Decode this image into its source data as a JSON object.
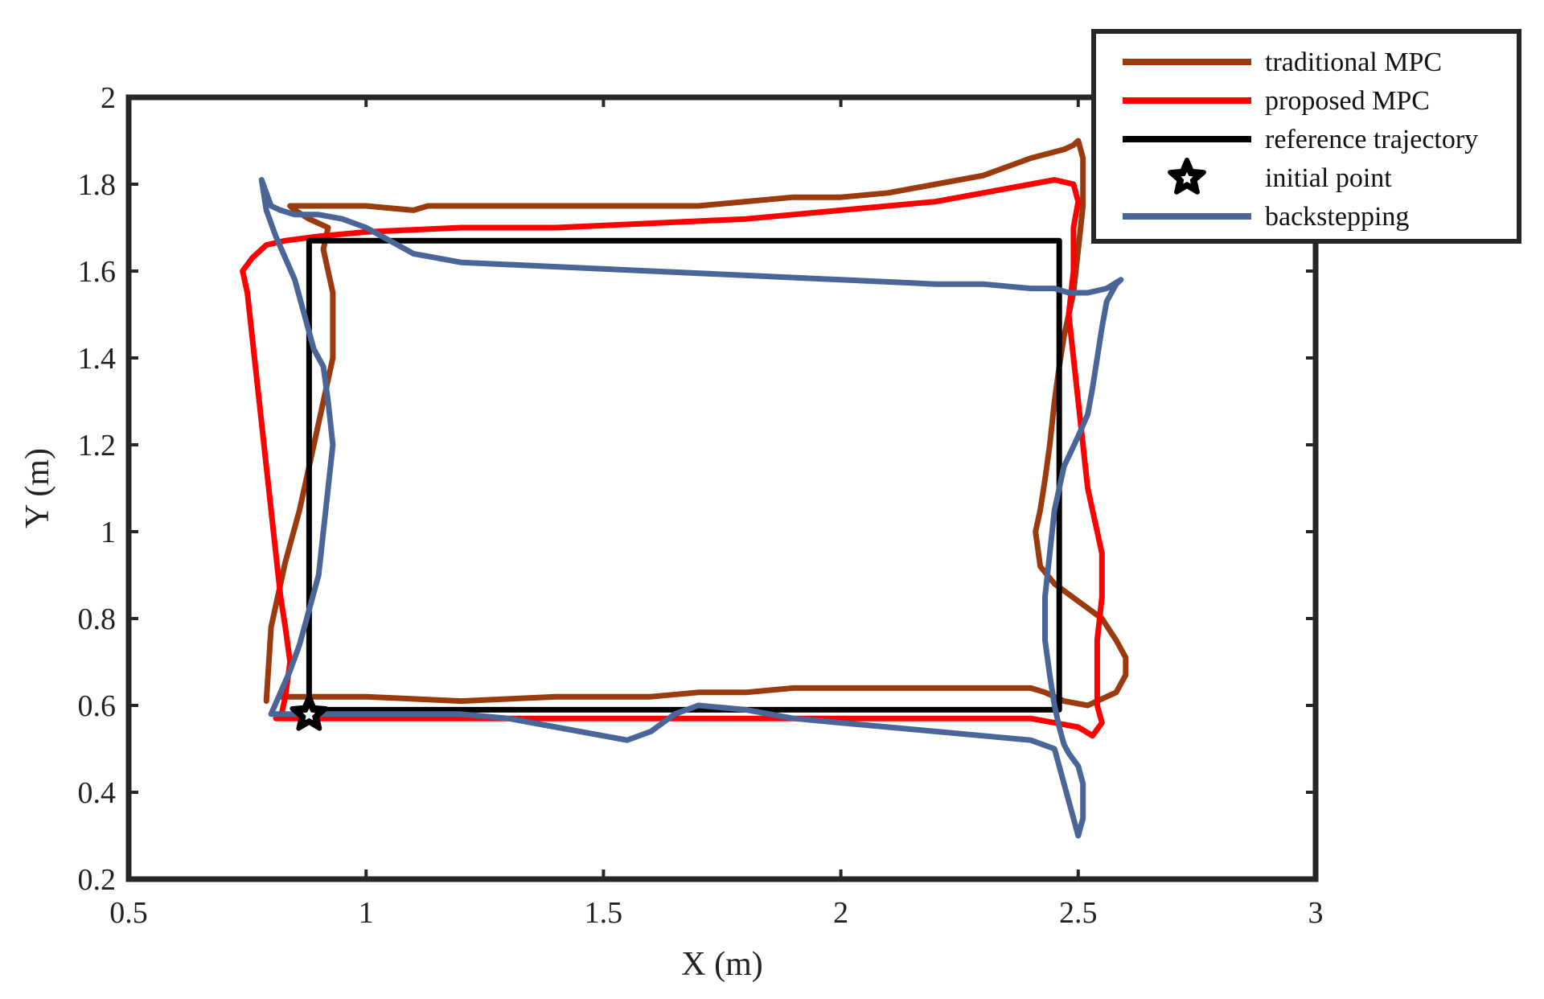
{
  "chart_data": {
    "type": "line",
    "title": "",
    "xlabel": "X (m)",
    "ylabel": "Y (m)",
    "xlim": [
      0.5,
      3
    ],
    "ylim": [
      0.2,
      2
    ],
    "xticks": [
      0.5,
      1,
      1.5,
      2,
      2.5,
      3
    ],
    "xtick_labels": [
      "0.5",
      "1",
      "1.5",
      "2",
      "2.5",
      "3"
    ],
    "yticks": [
      0.2,
      0.4,
      0.6,
      0.8,
      1.0,
      1.2,
      1.4,
      1.6,
      1.8,
      2.0
    ],
    "ytick_labels": [
      "0.2",
      "0.4",
      "0.6",
      "0.8",
      "1",
      "1.2",
      "1.4",
      "1.6",
      "1.8",
      "2"
    ],
    "grid": false,
    "legend_position": "top-right",
    "series": [
      {
        "name": "traditional MPC",
        "color": "#9b3a0c",
        "marker": "line",
        "x": [
          0.79,
          0.8,
          0.83,
          0.86,
          0.88,
          0.9,
          0.92,
          0.93,
          0.93,
          0.91,
          0.92,
          0.9,
          0.88,
          0.85,
          0.84,
          1.0,
          1.1,
          1.13,
          1.15,
          1.4,
          1.7,
          1.8,
          1.9,
          2.0,
          2.1,
          2.2,
          2.3,
          2.4,
          2.47,
          2.49,
          2.5,
          2.51,
          2.51,
          2.5,
          2.49,
          2.47,
          2.46,
          2.45,
          2.44,
          2.43,
          2.42,
          2.41,
          2.42,
          2.45,
          2.5,
          2.55,
          2.58,
          2.6,
          2.6,
          2.58,
          2.52,
          2.47,
          2.43,
          2.4,
          2.3,
          2.2,
          2.1,
          2.0,
          1.9,
          1.8,
          1.7,
          1.6,
          1.4,
          1.2,
          1.0,
          0.9,
          0.82
        ],
        "y": [
          0.61,
          0.78,
          0.93,
          1.05,
          1.15,
          1.25,
          1.35,
          1.4,
          1.55,
          1.65,
          1.7,
          1.71,
          1.72,
          1.74,
          1.75,
          1.75,
          1.74,
          1.75,
          1.75,
          1.75,
          1.75,
          1.76,
          1.77,
          1.77,
          1.78,
          1.8,
          1.82,
          1.86,
          1.88,
          1.89,
          1.9,
          1.86,
          1.75,
          1.65,
          1.55,
          1.45,
          1.38,
          1.3,
          1.2,
          1.12,
          1.05,
          1.0,
          0.92,
          0.88,
          0.84,
          0.8,
          0.75,
          0.71,
          0.67,
          0.63,
          0.6,
          0.61,
          0.63,
          0.64,
          0.64,
          0.64,
          0.64,
          0.64,
          0.64,
          0.63,
          0.63,
          0.62,
          0.62,
          0.61,
          0.62,
          0.62,
          0.62
        ]
      },
      {
        "name": "proposed MPC",
        "color": "#ff0000",
        "marker": "line",
        "x": [
          0.82,
          0.83,
          0.84,
          0.83,
          0.82,
          0.81,
          0.8,
          0.79,
          0.78,
          0.77,
          0.76,
          0.75,
          0.74,
          0.76,
          0.79,
          0.83,
          0.9,
          1.0,
          1.2,
          1.4,
          1.6,
          1.8,
          2.0,
          2.2,
          2.3,
          2.4,
          2.45,
          2.49,
          2.5,
          2.49,
          2.49,
          2.48,
          2.49,
          2.5,
          2.51,
          2.52,
          2.53,
          2.54,
          2.55,
          2.55,
          2.54,
          2.54,
          2.54,
          2.55,
          2.53,
          2.5,
          2.45,
          2.4,
          2.3,
          2.2,
          2.0,
          1.8,
          1.6,
          1.4,
          1.2,
          1.0,
          0.9,
          0.81
        ],
        "y": [
          0.57,
          0.62,
          0.7,
          0.78,
          0.85,
          0.95,
          1.05,
          1.15,
          1.25,
          1.35,
          1.45,
          1.55,
          1.6,
          1.63,
          1.66,
          1.67,
          1.68,
          1.69,
          1.7,
          1.7,
          1.71,
          1.72,
          1.74,
          1.76,
          1.78,
          1.8,
          1.81,
          1.8,
          1.76,
          1.7,
          1.6,
          1.5,
          1.4,
          1.3,
          1.2,
          1.1,
          1.05,
          1.0,
          0.95,
          0.85,
          0.75,
          0.65,
          0.6,
          0.56,
          0.53,
          0.55,
          0.56,
          0.57,
          0.57,
          0.57,
          0.57,
          0.57,
          0.57,
          0.57,
          0.57,
          0.57,
          0.57,
          0.57
        ]
      },
      {
        "name": "reference trajectory",
        "color": "#000000",
        "marker": "line",
        "x": [
          0.88,
          2.46,
          2.46,
          0.88,
          0.88
        ],
        "y": [
          0.59,
          0.59,
          1.67,
          1.67,
          0.59
        ]
      },
      {
        "name": "initial point",
        "color": "#000000",
        "marker": "star",
        "x": [
          0.88
        ],
        "y": [
          0.58
        ]
      },
      {
        "name": "backstepping",
        "color": "#4a6699",
        "marker": "line",
        "x": [
          0.78,
          0.79,
          0.8,
          0.82,
          0.85,
          0.9,
          0.95,
          1.0,
          1.05,
          1.1,
          1.2,
          1.4,
          1.6,
          1.8,
          2.0,
          2.2,
          2.3,
          2.4,
          2.45,
          2.48,
          2.52,
          2.56,
          2.59,
          2.58,
          2.56,
          2.55,
          2.54,
          2.53,
          2.52,
          2.5,
          2.47,
          2.45,
          2.44,
          2.43,
          2.43,
          2.44,
          2.45,
          2.46,
          2.47,
          2.48,
          2.5,
          2.51,
          2.51,
          2.5,
          2.45,
          2.4,
          2.3,
          2.2,
          2.1,
          2.0,
          1.9,
          1.8,
          1.7,
          1.65,
          1.6,
          1.55,
          1.5,
          1.4,
          1.3,
          1.2,
          1.1,
          1.0,
          0.9,
          0.85,
          0.8,
          0.82,
          0.84,
          0.86,
          0.88,
          0.9,
          0.91,
          0.92,
          0.93,
          0.92,
          0.91,
          0.89,
          0.87,
          0.85,
          0.83,
          0.81,
          0.79,
          0.78
        ],
        "y": [
          1.81,
          1.78,
          1.75,
          1.74,
          1.73,
          1.73,
          1.72,
          1.7,
          1.67,
          1.64,
          1.62,
          1.61,
          1.6,
          1.59,
          1.58,
          1.57,
          1.57,
          1.56,
          1.56,
          1.55,
          1.55,
          1.56,
          1.58,
          1.57,
          1.53,
          1.47,
          1.4,
          1.33,
          1.27,
          1.22,
          1.15,
          1.05,
          0.95,
          0.85,
          0.75,
          0.67,
          0.6,
          0.55,
          0.51,
          0.49,
          0.46,
          0.42,
          0.34,
          0.3,
          0.5,
          0.52,
          0.53,
          0.54,
          0.55,
          0.56,
          0.57,
          0.59,
          0.6,
          0.58,
          0.54,
          0.52,
          0.53,
          0.55,
          0.57,
          0.58,
          0.58,
          0.58,
          0.58,
          0.58,
          0.58,
          0.63,
          0.68,
          0.74,
          0.82,
          0.9,
          1.0,
          1.1,
          1.2,
          1.3,
          1.38,
          1.42,
          1.5,
          1.58,
          1.63,
          1.68,
          1.74,
          1.81
        ]
      }
    ]
  }
}
